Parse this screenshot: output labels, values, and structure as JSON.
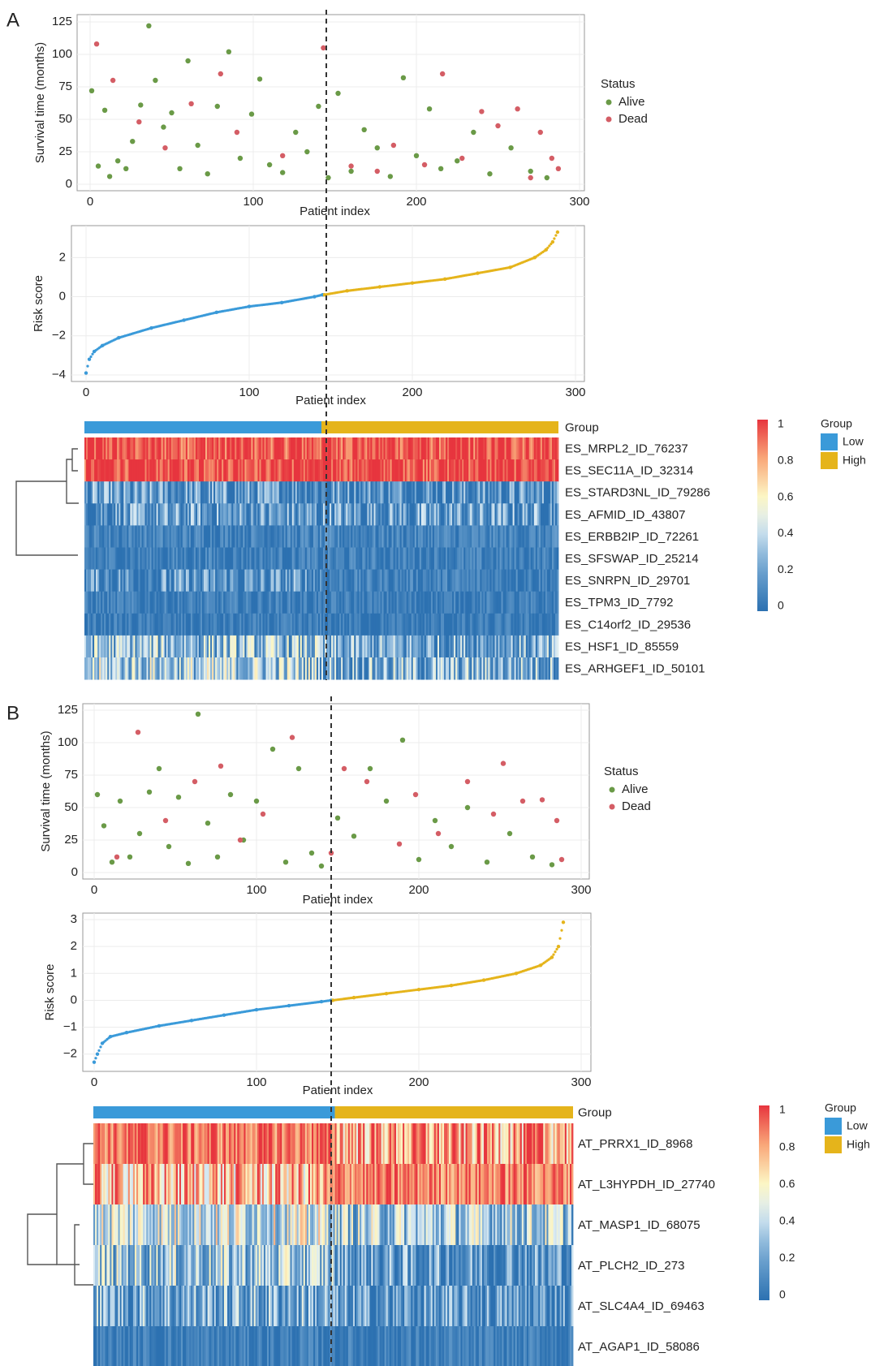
{
  "panels": [
    {
      "letter": "A",
      "n_patients": 290,
      "cutoff_index": 145,
      "scatter_legend_title": "Status",
      "scatter_legend": [
        "Alive",
        "Dead"
      ],
      "group_legend_title": "Group",
      "group_legend": [
        "Low",
        "High"
      ],
      "group_row_label": "Group",
      "colorbar_ticks": [
        "1",
        "0.8",
        "0.6",
        "0.4",
        "0.2",
        "0"
      ],
      "heatmap_rows": [
        "ES_MRPL2_ID_76237",
        "ES_SEC11A_ID_32314",
        "ES_STARD3NL_ID_79286",
        "ES_AFMID_ID_43807",
        "ES_ERBB2IP_ID_72261",
        "ES_SFSWAP_ID_25214",
        "ES_SNRPN_ID_29701",
        "ES_TPM3_ID_7792",
        "ES_C14orf2_ID_29536",
        "ES_HSF1_ID_85559",
        "ES_ARHGEF1_ID_50101"
      ]
    },
    {
      "letter": "B",
      "n_patients": 290,
      "cutoff_index": 146,
      "scatter_legend_title": "Status",
      "scatter_legend": [
        "Alive",
        "Dead"
      ],
      "group_legend_title": "Group",
      "group_legend": [
        "Low",
        "High"
      ],
      "group_row_label": "Group",
      "colorbar_ticks": [
        "1",
        "0.8",
        "0.6",
        "0.4",
        "0.2",
        "0"
      ],
      "heatmap_rows": [
        "AT_PRRX1_ID_8968",
        "AT_L3HYPDH_ID_27740",
        "AT_MASP1_ID_68075",
        "AT_PLCH2_ID_273",
        "AT_SLC4A4_ID_69463",
        "AT_AGAP1_ID_58086"
      ]
    }
  ],
  "chart_data": [
    {
      "type": "scatter",
      "panel": "A",
      "xlabel": "Patient index",
      "ylabel": "Survival time (months)",
      "xlim": [
        0,
        300
      ],
      "ylim": [
        0,
        125
      ],
      "xticks": [
        0,
        100,
        200,
        300
      ],
      "yticks": [
        0,
        25,
        50,
        75,
        100,
        125
      ],
      "grid": true,
      "legend": "right",
      "series": [
        {
          "name": "Alive",
          "color": "#6a9a47",
          "x": [
            1,
            5,
            9,
            12,
            17,
            22,
            26,
            31,
            36,
            40,
            45,
            50,
            55,
            60,
            66,
            72,
            78,
            85,
            92,
            99,
            104,
            110,
            118,
            126,
            133,
            140,
            146,
            152,
            160,
            168,
            176,
            184,
            192,
            200,
            208,
            215,
            225,
            235,
            245,
            258,
            270,
            280
          ],
          "y": [
            72,
            14,
            57,
            6,
            18,
            12,
            33,
            61,
            122,
            80,
            44,
            55,
            12,
            95,
            30,
            8,
            60,
            102,
            20,
            54,
            81,
            15,
            9,
            40,
            25,
            60,
            5,
            70,
            10,
            42,
            28,
            6,
            82,
            22,
            58,
            12,
            18,
            40,
            8,
            28,
            10,
            5
          ]
        },
        {
          "name": "Dead",
          "color": "#d45d65",
          "x": [
            4,
            14,
            30,
            46,
            62,
            80,
            90,
            118,
            143,
            160,
            176,
            186,
            205,
            216,
            228,
            240,
            250,
            262,
            270,
            276,
            283,
            287
          ],
          "y": [
            108,
            80,
            48,
            28,
            62,
            85,
            40,
            22,
            105,
            14,
            10,
            30,
            15,
            85,
            20,
            56,
            45,
            58,
            5,
            40,
            20,
            12
          ]
        }
      ]
    },
    {
      "type": "scatter",
      "panel": "A",
      "xlabel": "Patient index",
      "ylabel": "Risk score",
      "xlim": [
        0,
        300
      ],
      "ylim": [
        -4,
        3.3
      ],
      "xticks": [
        0,
        100,
        200,
        300
      ],
      "yticks": [
        -4,
        -2,
        0,
        2
      ],
      "grid": true,
      "series": [
        {
          "name": "Low",
          "color": "#3a9ad9",
          "x": [
            0,
            2,
            5,
            10,
            20,
            40,
            60,
            80,
            100,
            120,
            140,
            145
          ],
          "y": [
            -3.9,
            -3.2,
            -2.8,
            -2.5,
            -2.1,
            -1.6,
            -1.2,
            -0.8,
            -0.5,
            -0.3,
            0,
            0.1
          ]
        },
        {
          "name": "High",
          "color": "#e5b41b",
          "x": [
            146,
            160,
            180,
            200,
            220,
            240,
            260,
            275,
            282,
            286,
            289
          ],
          "y": [
            0.1,
            0.3,
            0.5,
            0.7,
            0.9,
            1.2,
            1.5,
            2.0,
            2.4,
            2.8,
            3.3
          ]
        }
      ]
    },
    {
      "type": "heatmap",
      "panel": "A",
      "rows": [
        "ES_MRPL2_ID_76237",
        "ES_SEC11A_ID_32314",
        "ES_STARD3NL_ID_79286",
        "ES_AFMID_ID_43807",
        "ES_ERBB2IP_ID_72261",
        "ES_SFSWAP_ID_25214",
        "ES_SNRPN_ID_29701",
        "ES_TPM3_ID_7792",
        "ES_C14orf2_ID_29536",
        "ES_HSF1_ID_85559",
        "ES_ARHGEF1_ID_50101"
      ],
      "row_mean_low": [
        0.95,
        0.99,
        0.12,
        0.14,
        0.08,
        0.06,
        0.1,
        0.05,
        0.03,
        0.3,
        0.35
      ],
      "row_mean_high": [
        0.96,
        0.99,
        0.1,
        0.15,
        0.08,
        0.06,
        0.07,
        0.04,
        0.03,
        0.2,
        0.25
      ],
      "colorscale_range": [
        0,
        1
      ]
    },
    {
      "type": "scatter",
      "panel": "B",
      "xlabel": "Patient index",
      "ylabel": "Survival time (months)",
      "xlim": [
        0,
        300
      ],
      "ylim": [
        0,
        125
      ],
      "xticks": [
        0,
        100,
        200,
        300
      ],
      "yticks": [
        0,
        25,
        50,
        75,
        100,
        125
      ],
      "grid": true,
      "legend": "right",
      "series": [
        {
          "name": "Alive",
          "color": "#6a9a47",
          "x": [
            2,
            6,
            11,
            16,
            22,
            28,
            34,
            40,
            46,
            52,
            58,
            64,
            70,
            76,
            84,
            92,
            100,
            110,
            118,
            126,
            134,
            140,
            150,
            160,
            170,
            180,
            190,
            200,
            210,
            220,
            230,
            242,
            256,
            270,
            282
          ],
          "y": [
            60,
            36,
            8,
            55,
            12,
            30,
            62,
            80,
            20,
            58,
            7,
            122,
            38,
            12,
            60,
            25,
            55,
            95,
            8,
            80,
            15,
            5,
            42,
            28,
            80,
            55,
            102,
            10,
            40,
            20,
            50,
            8,
            30,
            12,
            6
          ]
        },
        {
          "name": "Dead",
          "color": "#d45d65",
          "x": [
            14,
            27,
            44,
            62,
            78,
            90,
            104,
            122,
            146,
            154,
            168,
            188,
            198,
            212,
            230,
            246,
            252,
            264,
            276,
            285,
            288
          ],
          "y": [
            12,
            108,
            40,
            70,
            82,
            25,
            45,
            104,
            15,
            80,
            70,
            22,
            60,
            30,
            70,
            45,
            84,
            55,
            56,
            40,
            10
          ]
        }
      ]
    },
    {
      "type": "scatter",
      "panel": "B",
      "xlabel": "Patient index",
      "ylabel": "Risk score",
      "xlim": [
        0,
        300
      ],
      "ylim": [
        -2.4,
        3
      ],
      "xticks": [
        0,
        100,
        200,
        300
      ],
      "yticks": [
        -2,
        -1,
        0,
        1,
        2,
        3
      ],
      "grid": true,
      "series": [
        {
          "name": "Low",
          "color": "#3a9ad9",
          "x": [
            0,
            2,
            5,
            10,
            20,
            40,
            60,
            80,
            100,
            120,
            140,
            146
          ],
          "y": [
            -2.3,
            -2.0,
            -1.6,
            -1.35,
            -1.2,
            -0.95,
            -0.75,
            -0.55,
            -0.35,
            -0.2,
            -0.05,
            0
          ]
        },
        {
          "name": "High",
          "color": "#e5b41b",
          "x": [
            147,
            160,
            180,
            200,
            220,
            240,
            260,
            275,
            282,
            286,
            289
          ],
          "y": [
            0,
            0.1,
            0.25,
            0.4,
            0.55,
            0.75,
            1.0,
            1.3,
            1.6,
            2.0,
            2.9
          ]
        }
      ]
    },
    {
      "type": "heatmap",
      "panel": "B",
      "rows": [
        "AT_PRRX1_ID_8968",
        "AT_L3HYPDH_ID_27740",
        "AT_MASP1_ID_68075",
        "AT_PLCH2_ID_273",
        "AT_SLC4A4_ID_69463",
        "AT_AGAP1_ID_58086"
      ],
      "row_mean_low": [
        0.88,
        0.72,
        0.45,
        0.32,
        0.22,
        0.05
      ],
      "row_mean_high": [
        0.8,
        0.86,
        0.35,
        0.15,
        0.12,
        0.05
      ],
      "colorscale_range": [
        0,
        1
      ]
    }
  ]
}
